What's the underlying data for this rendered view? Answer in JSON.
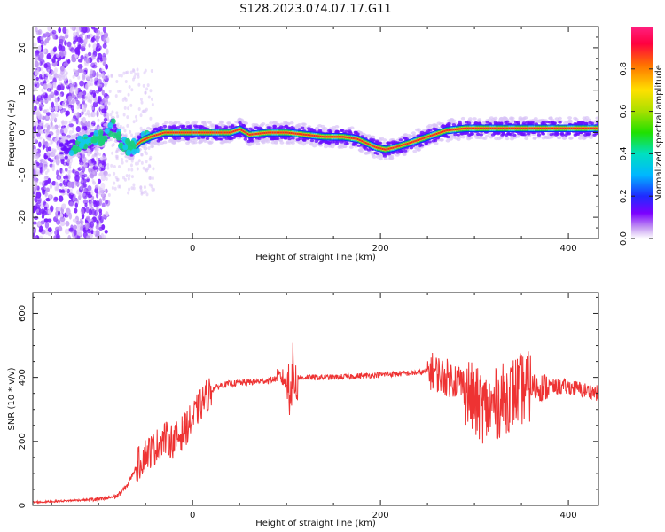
{
  "title": "S128.2023.074.07.17.G11",
  "chart_data": [
    {
      "type": "heatmap",
      "xlabel": "Height of straight line (km)",
      "ylabel": "Frequency (Hz)",
      "xlim": [
        -170,
        432
      ],
      "ylim": [
        -25,
        25
      ],
      "x_ticks": [
        0,
        200,
        400
      ],
      "y_ticks": [
        -20,
        -10,
        0,
        10,
        20
      ],
      "colorbar": {
        "label": "Normalized spectral amplitude",
        "range": [
          0,
          1
        ],
        "ticks": [
          0.0,
          0.2,
          0.4,
          0.6,
          0.8
        ],
        "tick_labels": [
          "0.0",
          "0.2",
          "0.4",
          "0.6",
          "0.8"
        ]
      },
      "peak_frequency_trace": {
        "x": [
          -130,
          -110,
          -95,
          -85,
          -75,
          -65,
          -55,
          -45,
          -30,
          0,
          40,
          50,
          60,
          80,
          100,
          120,
          140,
          160,
          175,
          185,
          195,
          205,
          215,
          230,
          250,
          270,
          290,
          310,
          340,
          370,
          400,
          430
        ],
        "y": [
          -3.5,
          -2,
          -1,
          1.5,
          -2.5,
          -4,
          -2,
          -1,
          0,
          0,
          0,
          0.8,
          -0.5,
          0,
          0,
          -0.5,
          -1,
          -1,
          -1.5,
          -2.5,
          -3.5,
          -4,
          -3.5,
          -2.5,
          -1,
          0.5,
          1,
          1,
          1,
          1,
          1,
          1
        ]
      }
    },
    {
      "type": "line",
      "xlabel": "Height of straight line (km)",
      "ylabel": "SNR (10 * v/v)",
      "xlim": [
        -170,
        432
      ],
      "ylim": [
        0,
        665
      ],
      "x_ticks": [
        0,
        200,
        400
      ],
      "y_ticks": [
        0,
        200,
        400,
        600
      ],
      "series": [
        {
          "color": "#ee3333",
          "x": [
            -170,
            -150,
            -130,
            -110,
            -95,
            -80,
            -70,
            -60,
            -50,
            -40,
            -30,
            -20,
            -10,
            0,
            10,
            20,
            30,
            40,
            60,
            80,
            95,
            102,
            106,
            110,
            120,
            150,
            180,
            210,
            240,
            255,
            270,
            285,
            300,
            315,
            330,
            345,
            360,
            380,
            400,
            432
          ],
          "y": [
            10,
            12,
            15,
            18,
            20,
            30,
            60,
            120,
            160,
            180,
            210,
            200,
            230,
            270,
            320,
            360,
            375,
            380,
            385,
            390,
            400,
            380,
            400,
            400,
            400,
            400,
            405,
            410,
            415,
            420,
            400,
            390,
            320,
            300,
            330,
            360,
            370,
            370,
            370,
            350
          ]
        }
      ]
    }
  ]
}
